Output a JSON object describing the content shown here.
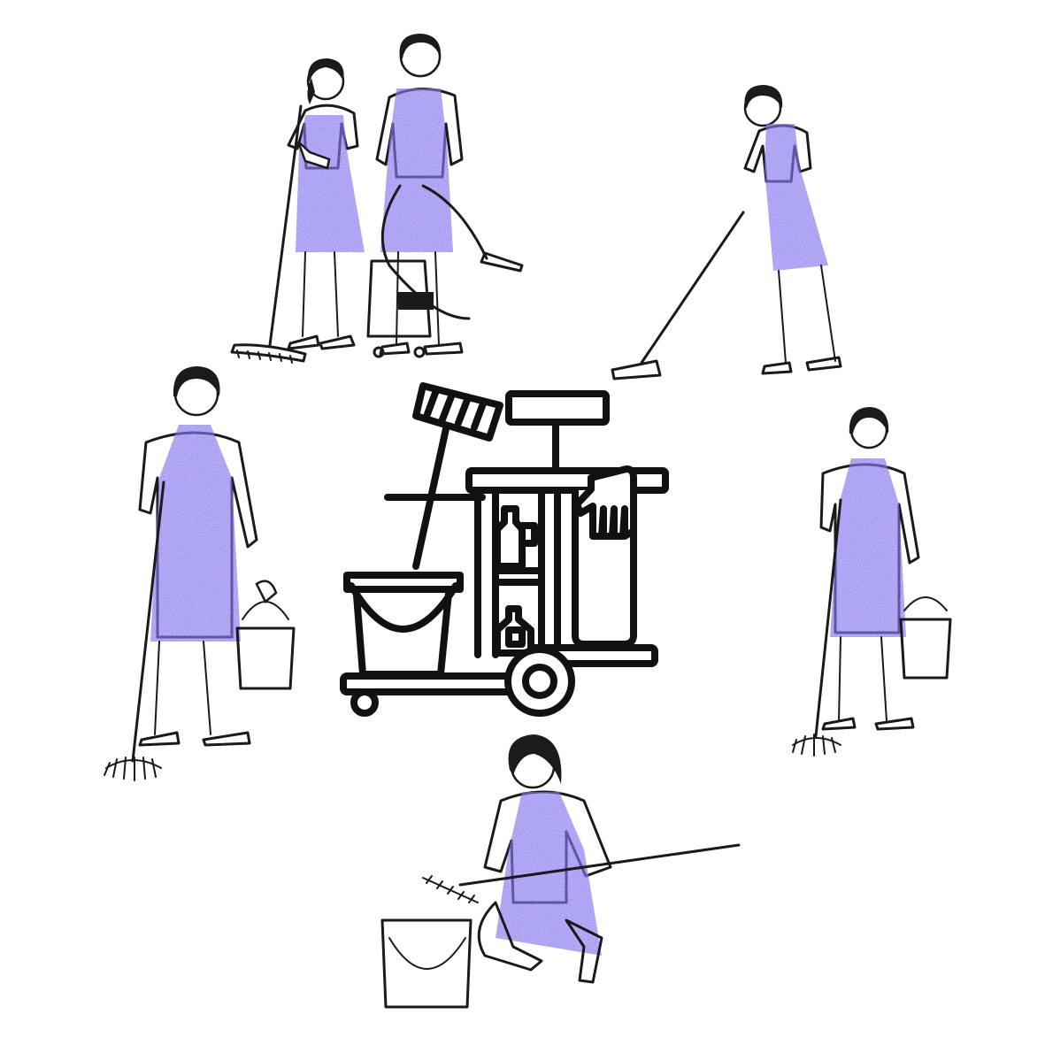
{
  "illustration": {
    "subject": "cleaning-service",
    "colors": {
      "apron": "#3a2fd9",
      "ink": "#1a1a1a",
      "background": "#ffffff"
    },
    "figures": [
      {
        "id": "woman-with-flat-mop",
        "tool": "flat-mop"
      },
      {
        "id": "man-with-vacuum",
        "tool": "wet-dry-vacuum"
      },
      {
        "id": "man-mopping-floor",
        "tool": "spin-mop"
      },
      {
        "id": "woman-with-mop-and-bucket-left",
        "tool": "string-mop-and-bucket"
      },
      {
        "id": "woman-with-mop-and-bucket-right",
        "tool": "string-mop-and-bucket"
      },
      {
        "id": "woman-kneeling-scrubbing",
        "tool": "brush-and-bucket"
      }
    ],
    "center_icon": "janitor-cart-icon"
  }
}
